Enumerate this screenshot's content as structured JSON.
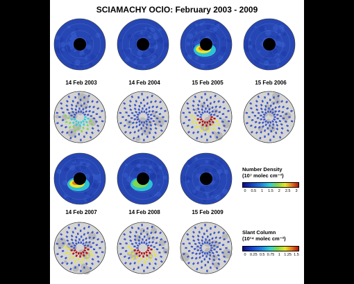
{
  "title": "SCIAMACHY OClO: February 2003 - 2009",
  "rows": [
    {
      "kind": "density",
      "dates": [
        "14 Feb 2003",
        "14 Feb 2004",
        "15 Feb 2005",
        "15 Feb 2006"
      ]
    },
    {
      "kind": "slant",
      "dates": []
    },
    {
      "kind": "density",
      "dates": [
        "14 Feb 2007",
        "14 Feb 2008",
        "15 Feb 2009"
      ]
    },
    {
      "kind": "slant",
      "dates": []
    }
  ],
  "density_legend": {
    "line1": "Number Density",
    "line2": "(10⁷ molec cm⁻³)",
    "ticks": [
      "0",
      "0.5",
      "1",
      "1.5",
      "2",
      "2.5",
      "3"
    ]
  },
  "slant_legend": {
    "line1": "Slant Column",
    "line2": "(10¹⁴ molec cm⁻²)",
    "ticks": [
      "0",
      "0.25",
      "0.5",
      "0.75",
      "1",
      "1.25",
      "1.5"
    ]
  },
  "colors": {
    "ocean": "#2a4fb8",
    "land": "#c8c8c8",
    "hole": "#000000",
    "swath": "#3a55c8"
  }
}
